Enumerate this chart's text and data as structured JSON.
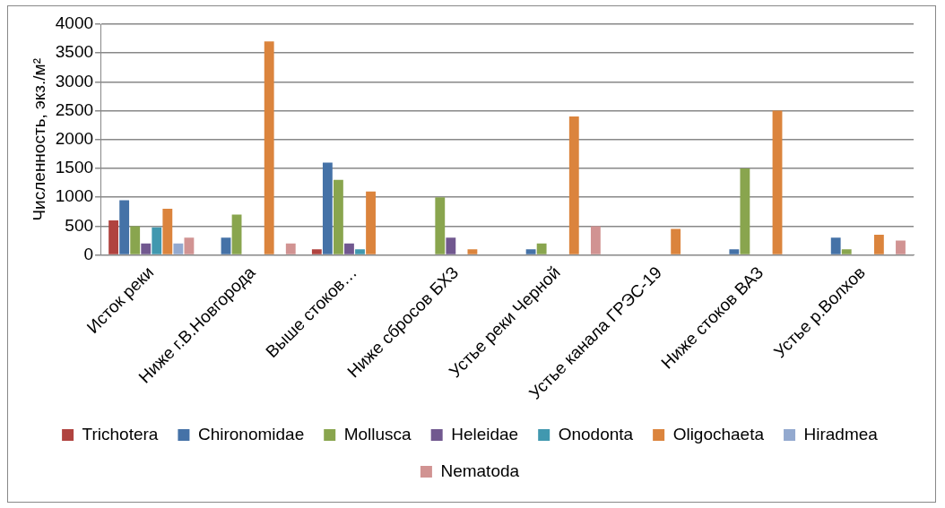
{
  "chart_data": {
    "type": "bar",
    "ylabel": "Численность, экз./м²",
    "categories": [
      "Исток реки",
      "Ниже г.В.Новгорода",
      "Выше стоков…",
      "Ниже сбросов БХЗ",
      "Устье реки Черной",
      "Устье канала ГРЭС-19",
      "Ниже стоков ВАЗ",
      "Устье р.Волхов"
    ],
    "series": [
      {
        "name": "Trichotera",
        "color": "#b0433f",
        "values": [
          600,
          null,
          100,
          null,
          null,
          null,
          null,
          null
        ]
      },
      {
        "name": "Chironomidae",
        "color": "#4572a7",
        "values": [
          950,
          300,
          1600,
          null,
          100,
          null,
          100,
          300
        ]
      },
      {
        "name": "Mollusca",
        "color": "#89a54e",
        "values": [
          500,
          700,
          1300,
          1000,
          200,
          null,
          1500,
          100
        ]
      },
      {
        "name": "Heleidae",
        "color": "#71588f",
        "values": [
          200,
          null,
          200,
          300,
          null,
          null,
          null,
          null
        ]
      },
      {
        "name": "Onodonta",
        "color": "#4198af",
        "values": [
          480,
          null,
          100,
          null,
          null,
          null,
          null,
          null
        ]
      },
      {
        "name": "Oligochaeta",
        "color": "#db843d",
        "values": [
          800,
          3700,
          1100,
          100,
          2400,
          450,
          2500,
          350
        ]
      },
      {
        "name": "Hiradmea",
        "color": "#93a9cf",
        "values": [
          200,
          null,
          null,
          null,
          null,
          null,
          null,
          null
        ]
      },
      {
        "name": "Nematoda",
        "color": "#d19392",
        "values": [
          300,
          200,
          null,
          null,
          500,
          null,
          null,
          250
        ]
      }
    ],
    "ylim": [
      0,
      4000
    ],
    "yticks": [
      0,
      500,
      1000,
      1500,
      2000,
      2500,
      3000,
      3500,
      4000
    ],
    "grid": "y",
    "legend": "bottom"
  }
}
